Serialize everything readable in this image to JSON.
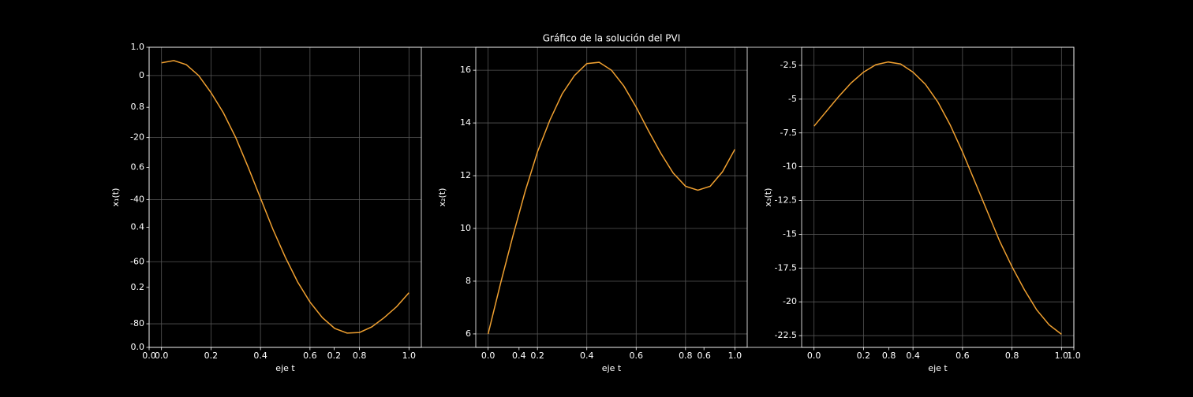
{
  "chart_data": [
    {
      "type": "frame",
      "title": "Gráfico de la solución del PVI",
      "xlim": [
        0,
        1
      ],
      "ylim": [
        0,
        1
      ],
      "xticks": [
        {
          "value": 0,
          "label": "0.0"
        },
        0.2,
        0.4,
        0.6,
        0.8,
        {
          "value": 1,
          "label": "1.0"
        }
      ],
      "yticks": [
        {
          "value": 0,
          "label": "0.0"
        },
        0.2,
        0.4,
        0.6,
        0.8,
        {
          "value": 1,
          "label": "1.0"
        }
      ],
      "grid": false
    },
    {
      "type": "line",
      "xlabel": "eje t",
      "ylabel": "x₁(t)",
      "grid": true,
      "xlim": [
        -0.05,
        1.05
      ],
      "ylim": [
        -87.6,
        9.1
      ],
      "xticks": [
        {
          "value": 0,
          "label": "0.0"
        },
        0.2,
        0.4,
        0.6,
        0.8,
        {
          "value": 1,
          "label": "1.0"
        }
      ],
      "yticks": [
        -80,
        -60,
        -40,
        -20,
        0
      ],
      "x": [
        0,
        0.05,
        0.1,
        0.15,
        0.2,
        0.25,
        0.3,
        0.35,
        0.4,
        0.45,
        0.5,
        0.55,
        0.6,
        0.65,
        0.7,
        0.75,
        0.8,
        0.85,
        0.9,
        0.95,
        1
      ],
      "series": [
        {
          "name": "x1",
          "color": "#f0a030",
          "values": [
            4.1,
            4.8,
            3.5,
            0,
            -5.5,
            -12,
            -20,
            -29.5,
            -39.5,
            -49.5,
            -58.5,
            -66.5,
            -73,
            -78,
            -81.5,
            -83,
            -82.8,
            -81,
            -78,
            -74.5,
            -70
          ]
        }
      ]
    },
    {
      "type": "line",
      "xlabel": "eje t",
      "ylabel": "x₂(t)",
      "grid": true,
      "xlim": [
        -0.05,
        1.05
      ],
      "ylim": [
        5.49,
        16.87
      ],
      "xticks": [
        {
          "value": 0,
          "label": "0.0"
        },
        0.2,
        0.4,
        0.6,
        0.8,
        {
          "value": 1,
          "label": "1.0"
        }
      ],
      "yticks": [
        6,
        8,
        10,
        12,
        14,
        16
      ],
      "x": [
        0,
        0.05,
        0.1,
        0.15,
        0.2,
        0.25,
        0.3,
        0.35,
        0.4,
        0.45,
        0.5,
        0.55,
        0.6,
        0.65,
        0.7,
        0.75,
        0.8,
        0.85,
        0.9,
        0.95,
        1
      ],
      "series": [
        {
          "name": "x2",
          "color": "#f0a030",
          "values": [
            6,
            7.9,
            9.7,
            11.4,
            12.9,
            14.1,
            15.1,
            15.8,
            16.25,
            16.3,
            16.0,
            15.4,
            14.6,
            13.7,
            12.85,
            12.1,
            11.6,
            11.45,
            11.6,
            12.15,
            13.0
          ]
        }
      ]
    },
    {
      "type": "line",
      "xlabel": "eje t",
      "ylabel": "x₃(t)",
      "grid": true,
      "xlim": [
        -0.05,
        1.05
      ],
      "ylim": [
        -23.37,
        -1.16
      ],
      "xticks": [
        {
          "value": 0,
          "label": "0.0"
        },
        0.2,
        0.4,
        0.6,
        0.8,
        {
          "value": 1,
          "label": "1.0"
        }
      ],
      "yticks": [
        -22.5,
        -20,
        -17.5,
        -15,
        -12.5,
        -10,
        -7.5,
        -5,
        -2.5
      ],
      "x": [
        0,
        0.05,
        0.1,
        0.15,
        0.2,
        0.25,
        0.3,
        0.35,
        0.4,
        0.45,
        0.5,
        0.55,
        0.6,
        0.65,
        0.7,
        0.75,
        0.8,
        0.85,
        0.9,
        0.95,
        1
      ],
      "series": [
        {
          "name": "x3",
          "color": "#f0a030",
          "values": [
            -7.0,
            -5.9,
            -4.8,
            -3.8,
            -3.0,
            -2.45,
            -2.25,
            -2.4,
            -3.0,
            -3.9,
            -5.2,
            -6.9,
            -8.9,
            -11.1,
            -13.3,
            -15.5,
            -17.4,
            -19.1,
            -20.6,
            -21.7,
            -22.4
          ]
        }
      ]
    }
  ]
}
